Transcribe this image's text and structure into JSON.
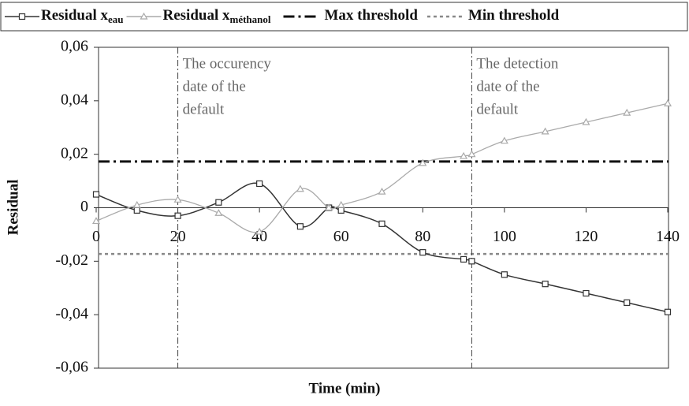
{
  "chart_data": {
    "type": "line",
    "xlabel": "Time (min)",
    "ylabel": "Residual",
    "x": [
      0,
      10,
      20,
      30,
      40,
      50,
      57,
      60,
      70,
      80,
      90,
      92,
      100,
      110,
      120,
      130,
      140
    ],
    "series": [
      {
        "name": "Residual x",
        "name_sub": "eau",
        "color": "#333333",
        "marker": "square",
        "values": [
          0.005,
          -0.001,
          -0.003,
          0.002,
          0.009,
          -0.007,
          0,
          -0.001,
          -0.006,
          -0.0167,
          -0.0193,
          -0.02,
          -0.025,
          -0.0285,
          -0.032,
          -0.0355,
          -0.039
        ]
      },
      {
        "name": "Residual x",
        "name_sub": "méthanol",
        "color": "#aaaaaa",
        "marker": "triangle",
        "values": [
          -0.005,
          0.001,
          0.003,
          -0.002,
          -0.009,
          0.007,
          0,
          0.001,
          0.006,
          0.0167,
          0.0193,
          0.02,
          0.025,
          0.0285,
          0.032,
          0.0355,
          0.039
        ]
      }
    ],
    "thresholds": [
      {
        "name": "Max threshold",
        "value": 0.0173,
        "color": "#111111",
        "dash": "14 5 3 5"
      },
      {
        "name": "Min threshold",
        "value": -0.0173,
        "color": "#888888",
        "dash": "4 4"
      }
    ],
    "annotations": [
      {
        "x": 20,
        "lines": [
          "The occurency",
          "date of the",
          "default"
        ]
      },
      {
        "x": 92,
        "lines": [
          "The detection",
          "date of the",
          "default"
        ]
      }
    ],
    "xlim": [
      0,
      140
    ],
    "xticks": [
      0,
      20,
      40,
      60,
      80,
      100,
      120,
      140
    ],
    "ylim": [
      -0.06,
      0.06
    ],
    "yticks": [
      {
        "value": -0.06,
        "label": "-0,06"
      },
      {
        "value": -0.04,
        "label": "-0,04"
      },
      {
        "value": -0.02,
        "label": "-0,02"
      },
      0,
      {
        "value": 0.02,
        "label": "0,02"
      },
      {
        "value": 0.04,
        "label": "0,04"
      },
      {
        "value": 0.06,
        "label": "0,06"
      }
    ]
  }
}
